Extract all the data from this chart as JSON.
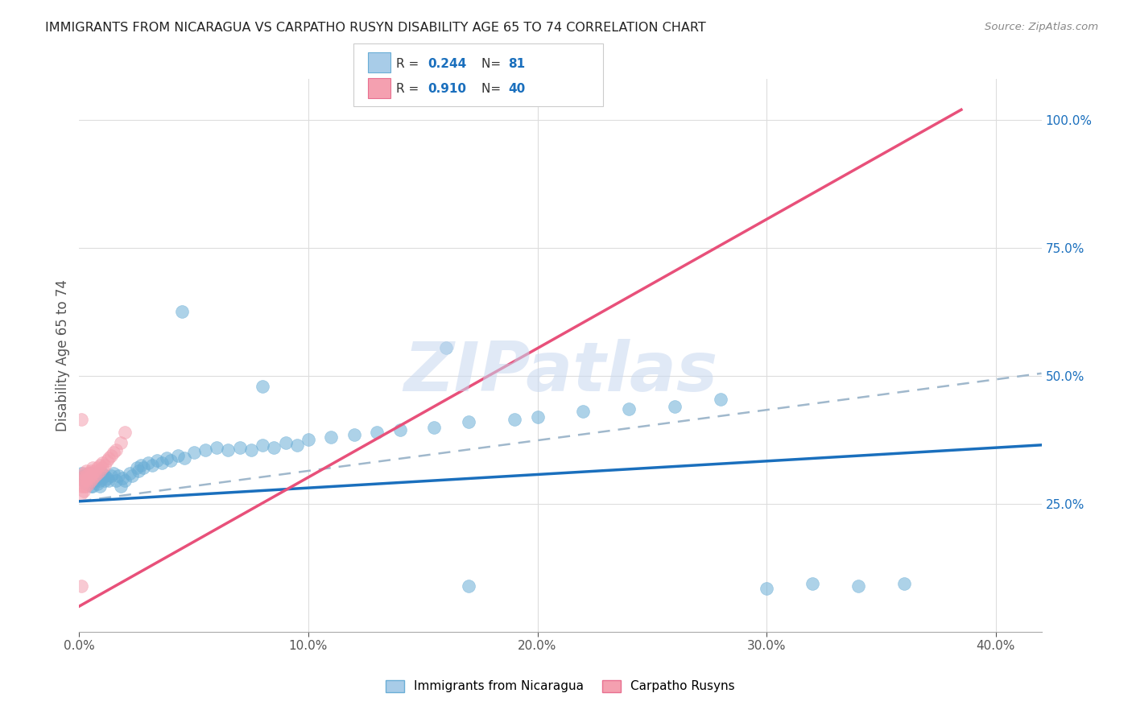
{
  "title": "IMMIGRANTS FROM NICARAGUA VS CARPATHO RUSYN DISABILITY AGE 65 TO 74 CORRELATION CHART",
  "source": "Source: ZipAtlas.com",
  "ylabel": "Disability Age 65 to 74",
  "xlim": [
    0.0,
    0.42
  ],
  "ylim": [
    0.0,
    1.08
  ],
  "xticks": [
    0.0,
    0.1,
    0.2,
    0.3,
    0.4
  ],
  "xticklabels": [
    "0.0%",
    "10.0%",
    "20.0%",
    "30.0%",
    "40.0%"
  ],
  "yticks_right": [
    0.25,
    0.5,
    0.75,
    1.0
  ],
  "yticklabels_right": [
    "25.0%",
    "50.0%",
    "75.0%",
    "100.0%"
  ],
  "series1_label": "Immigrants from Nicaragua",
  "series1_color": "#6baed6",
  "series2_label": "Carpatho Rusyns",
  "series2_color": "#f4a0b0",
  "background_color": "#ffffff",
  "grid_color": "#dddddd",
  "watermark_text": "ZIPatlas",
  "blue_trend": [
    0.0,
    0.255,
    0.42,
    0.365
  ],
  "pink_trend": [
    0.0,
    0.05,
    0.385,
    1.02
  ],
  "dash_trend": [
    0.0,
    0.255,
    0.42,
    0.505
  ],
  "blue_x": [
    0.001,
    0.002,
    0.002,
    0.002,
    0.003,
    0.003,
    0.003,
    0.004,
    0.004,
    0.004,
    0.005,
    0.005,
    0.005,
    0.006,
    0.006,
    0.006,
    0.007,
    0.007,
    0.008,
    0.008,
    0.008,
    0.009,
    0.009,
    0.01,
    0.01,
    0.011,
    0.011,
    0.012,
    0.013,
    0.014,
    0.015,
    0.016,
    0.017,
    0.018,
    0.019,
    0.02,
    0.022,
    0.023,
    0.025,
    0.026,
    0.027,
    0.028,
    0.03,
    0.032,
    0.034,
    0.036,
    0.038,
    0.04,
    0.043,
    0.046,
    0.05,
    0.055,
    0.06,
    0.065,
    0.07,
    0.075,
    0.08,
    0.085,
    0.09,
    0.095,
    0.1,
    0.11,
    0.12,
    0.13,
    0.14,
    0.155,
    0.17,
    0.19,
    0.2,
    0.22,
    0.24,
    0.26,
    0.28,
    0.3,
    0.32,
    0.34,
    0.36,
    0.045,
    0.16,
    0.08,
    0.17
  ],
  "blue_y": [
    0.31,
    0.295,
    0.305,
    0.3,
    0.29,
    0.305,
    0.295,
    0.3,
    0.29,
    0.31,
    0.285,
    0.3,
    0.31,
    0.295,
    0.305,
    0.285,
    0.295,
    0.305,
    0.29,
    0.3,
    0.31,
    0.295,
    0.285,
    0.3,
    0.31,
    0.295,
    0.305,
    0.3,
    0.295,
    0.305,
    0.31,
    0.295,
    0.305,
    0.285,
    0.3,
    0.295,
    0.31,
    0.305,
    0.32,
    0.315,
    0.325,
    0.32,
    0.33,
    0.325,
    0.335,
    0.33,
    0.34,
    0.335,
    0.345,
    0.34,
    0.35,
    0.355,
    0.36,
    0.355,
    0.36,
    0.355,
    0.365,
    0.36,
    0.37,
    0.365,
    0.375,
    0.38,
    0.385,
    0.39,
    0.395,
    0.4,
    0.41,
    0.415,
    0.42,
    0.43,
    0.435,
    0.44,
    0.455,
    0.085,
    0.095,
    0.09,
    0.095,
    0.625,
    0.555,
    0.48,
    0.09
  ],
  "pink_x": [
    0.001,
    0.001,
    0.001,
    0.001,
    0.002,
    0.002,
    0.002,
    0.002,
    0.002,
    0.003,
    0.003,
    0.003,
    0.003,
    0.004,
    0.004,
    0.004,
    0.005,
    0.005,
    0.005,
    0.006,
    0.006,
    0.006,
    0.007,
    0.007,
    0.008,
    0.008,
    0.009,
    0.009,
    0.01,
    0.01,
    0.011,
    0.012,
    0.013,
    0.014,
    0.015,
    0.016,
    0.018,
    0.02,
    0.001,
    0.001
  ],
  "pink_y": [
    0.27,
    0.285,
    0.295,
    0.3,
    0.275,
    0.285,
    0.295,
    0.305,
    0.31,
    0.285,
    0.295,
    0.305,
    0.315,
    0.29,
    0.3,
    0.31,
    0.295,
    0.305,
    0.315,
    0.3,
    0.31,
    0.32,
    0.305,
    0.315,
    0.31,
    0.32,
    0.315,
    0.325,
    0.32,
    0.33,
    0.325,
    0.335,
    0.34,
    0.345,
    0.35,
    0.355,
    0.37,
    0.39,
    0.415,
    0.09
  ]
}
